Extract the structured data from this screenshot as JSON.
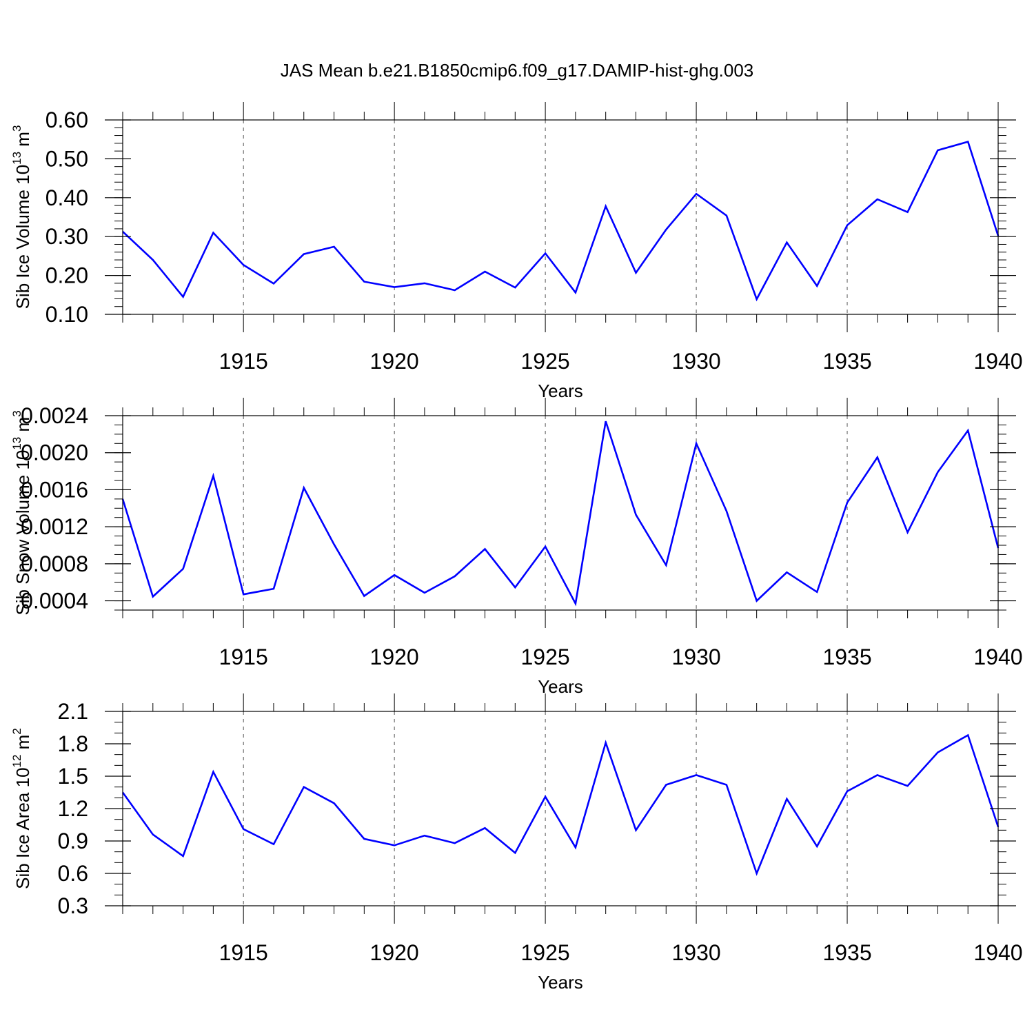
{
  "title": "JAS Mean b.e21.B1850cmip6.f09_g17.DAMIP-hist-ghg.003",
  "colors": {
    "line": "#0000ff",
    "axis": "#000000",
    "grid": "#000000",
    "background": "#ffffff"
  },
  "chart_data": [
    {
      "type": "line",
      "title": "JAS Mean b.e21.B1850cmip6.f09_g17.DAMIP-hist-ghg.003",
      "xlabel": "Years",
      "ylabel_main": "Sib Ice Volume 10",
      "ylabel_exp": "13",
      "ylabel_unit": " m",
      "ylabel_unit_exp": "3",
      "xlim": [
        1911,
        1940
      ],
      "ylim": [
        0.1,
        0.6
      ],
      "yticks": [
        "0.10",
        "0.20",
        "0.30",
        "0.40",
        "0.50",
        "0.60"
      ],
      "ytick_values": [
        0.1,
        0.2,
        0.3,
        0.4,
        0.5,
        0.6
      ],
      "yminor_step": 0.02,
      "xticks": [
        "1915",
        "1920",
        "1925",
        "1930",
        "1935",
        "1940"
      ],
      "xtick_values": [
        1915,
        1920,
        1925,
        1930,
        1935,
        1940
      ],
      "grid": "vertical dashed at major x ticks",
      "x": [
        1911,
        1912,
        1913,
        1914,
        1915,
        1916,
        1917,
        1918,
        1919,
        1920,
        1921,
        1922,
        1923,
        1924,
        1925,
        1926,
        1927,
        1928,
        1929,
        1930,
        1931,
        1932,
        1933,
        1934,
        1935,
        1936,
        1937,
        1938,
        1939,
        1940
      ],
      "series": [
        {
          "name": "Sib Ice Volume",
          "values": [
            0.313,
            0.24,
            0.145,
            0.31,
            0.227,
            0.179,
            0.255,
            0.274,
            0.184,
            0.17,
            0.18,
            0.162,
            0.21,
            0.169,
            0.257,
            0.156,
            0.378,
            0.207,
            0.318,
            0.41,
            0.354,
            0.139,
            0.285,
            0.173,
            0.329,
            0.396,
            0.363,
            0.522,
            0.544,
            0.302
          ]
        }
      ]
    },
    {
      "type": "line",
      "xlabel": "Years",
      "ylabel_main": "Sib Snow Volume 10",
      "ylabel_exp": "13",
      "ylabel_unit": " m",
      "ylabel_unit_exp": "3",
      "xlim": [
        1911,
        1940
      ],
      "ylim": [
        0.0003,
        0.0024
      ],
      "yticks": [
        "0.0004",
        "0.0008",
        "0.0012",
        "0.0016",
        "0.0020",
        "0.0024"
      ],
      "ytick_values": [
        0.0004,
        0.0008,
        0.0012,
        0.0016,
        0.002,
        0.0024
      ],
      "yminor_step": 0.0001,
      "xticks": [
        "1915",
        "1920",
        "1925",
        "1930",
        "1935",
        "1940"
      ],
      "xtick_values": [
        1915,
        1920,
        1925,
        1930,
        1935,
        1940
      ],
      "grid": "vertical dashed at major x ticks",
      "x": [
        1911,
        1912,
        1913,
        1914,
        1915,
        1916,
        1917,
        1918,
        1919,
        1920,
        1921,
        1922,
        1923,
        1924,
        1925,
        1926,
        1927,
        1928,
        1929,
        1930,
        1931,
        1932,
        1933,
        1934,
        1935,
        1936,
        1937,
        1938,
        1939,
        1940
      ],
      "series": [
        {
          "name": "Sib Snow Volume",
          "values": [
            0.0015,
            0.000445,
            0.000745,
            0.00175,
            0.00047,
            0.00053,
            0.00162,
            0.00101,
            0.000452,
            0.000678,
            0.000487,
            0.000665,
            0.00096,
            0.000545,
            0.000986,
            0.00037,
            0.00234,
            0.00133,
            0.000785,
            0.0021,
            0.00137,
            0.0004,
            0.000707,
            0.000495,
            0.00146,
            0.00195,
            0.00114,
            0.00179,
            0.00224,
            0.00097
          ]
        }
      ]
    },
    {
      "type": "line",
      "xlabel": "Years",
      "ylabel_main": "Sib Ice Area 10",
      "ylabel_exp": "12",
      "ylabel_unit": " m",
      "ylabel_unit_exp": "2",
      "xlim": [
        1911,
        1940
      ],
      "ylim": [
        0.3,
        2.1
      ],
      "yticks": [
        "0.3",
        "0.6",
        "0.9",
        "1.2",
        "1.5",
        "1.8",
        "2.1"
      ],
      "ytick_values": [
        0.3,
        0.6,
        0.9,
        1.2,
        1.5,
        1.8,
        2.1
      ],
      "yminor_step": 0.1,
      "xticks": [
        "1915",
        "1920",
        "1925",
        "1930",
        "1935",
        "1940"
      ],
      "xtick_values": [
        1915,
        1920,
        1925,
        1930,
        1935,
        1940
      ],
      "grid": "vertical dashed at major x ticks",
      "x": [
        1911,
        1912,
        1913,
        1914,
        1915,
        1916,
        1917,
        1918,
        1919,
        1920,
        1921,
        1922,
        1923,
        1924,
        1925,
        1926,
        1927,
        1928,
        1929,
        1930,
        1931,
        1932,
        1933,
        1934,
        1935,
        1936,
        1937,
        1938,
        1939,
        1940
      ],
      "series": [
        {
          "name": "Sib Ice Area",
          "values": [
            1.35,
            0.96,
            0.76,
            1.54,
            1.01,
            0.87,
            1.4,
            1.25,
            0.92,
            0.86,
            0.95,
            0.88,
            1.02,
            0.79,
            1.31,
            0.84,
            1.81,
            1.0,
            1.42,
            1.51,
            1.42,
            0.6,
            1.29,
            0.85,
            1.36,
            1.51,
            1.41,
            1.72,
            1.88,
            1.03
          ]
        }
      ]
    }
  ]
}
